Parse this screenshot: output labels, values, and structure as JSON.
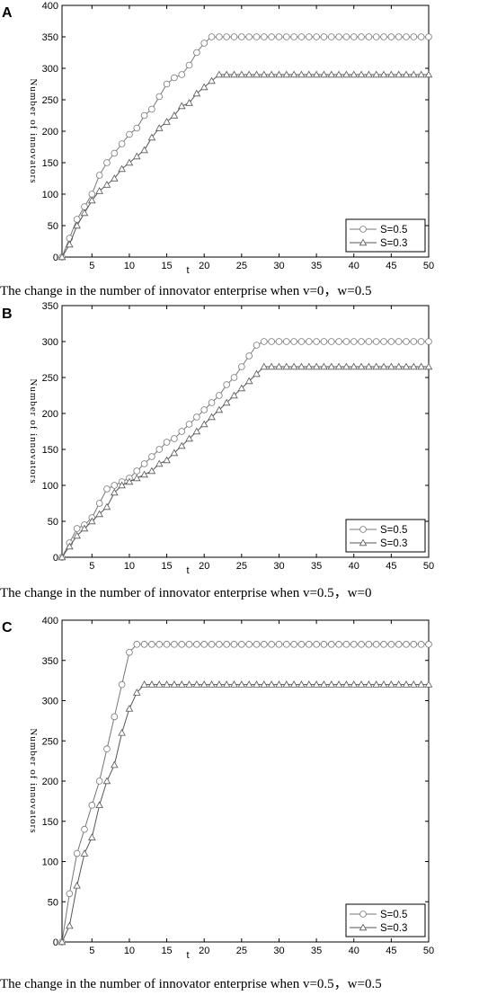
{
  "chart_data": [
    {
      "type": "line",
      "panel_label": "A",
      "caption": "The change in the number of innovator enterprise when v=0，w=0.5",
      "xlabel": "t",
      "ylabel": "Number of innovators",
      "xlim": [
        1,
        50
      ],
      "ylim": [
        0,
        400
      ],
      "x_ticks": [
        5,
        10,
        15,
        20,
        25,
        30,
        35,
        40,
        45,
        50
      ],
      "y_ticks": [
        0,
        50,
        100,
        150,
        200,
        250,
        300,
        350,
        400
      ],
      "legend": "bottom-right",
      "series": [
        {
          "name": "S=0.5",
          "marker": "circle",
          "color": "#666666",
          "values": [
            0,
            30,
            60,
            80,
            100,
            130,
            150,
            165,
            180,
            195,
            205,
            225,
            235,
            255,
            275,
            285,
            290,
            305,
            325,
            340,
            350,
            350,
            350,
            350,
            350,
            350,
            350,
            350,
            350,
            350,
            350,
            350,
            350,
            350,
            350,
            350,
            350,
            350,
            350,
            350,
            350,
            350,
            350,
            350,
            350,
            350,
            350,
            350,
            350,
            350
          ]
        },
        {
          "name": "S=0.3",
          "marker": "triangle",
          "color": "#666666",
          "values": [
            0,
            20,
            50,
            70,
            90,
            105,
            115,
            125,
            140,
            150,
            160,
            170,
            190,
            205,
            215,
            225,
            240,
            245,
            260,
            270,
            280,
            290,
            290,
            290,
            290,
            290,
            290,
            290,
            290,
            290,
            290,
            290,
            290,
            290,
            290,
            290,
            290,
            290,
            290,
            290,
            290,
            290,
            290,
            290,
            290,
            290,
            290,
            290,
            290,
            290
          ]
        }
      ]
    },
    {
      "type": "line",
      "panel_label": "B",
      "caption": "The change in the number of innovator enterprise when v=0.5，w=0",
      "xlabel": "t",
      "ylabel": "Number of innovators",
      "xlim": [
        1,
        50
      ],
      "ylim": [
        0,
        350
      ],
      "x_ticks": [
        5,
        10,
        15,
        20,
        25,
        30,
        35,
        40,
        45,
        50
      ],
      "y_ticks": [
        0,
        50,
        100,
        150,
        200,
        250,
        300,
        350
      ],
      "legend": "bottom-right",
      "series": [
        {
          "name": "S=0.5",
          "marker": "circle",
          "color": "#666666",
          "values": [
            0,
            20,
            40,
            45,
            55,
            75,
            95,
            100,
            105,
            110,
            120,
            130,
            140,
            150,
            160,
            165,
            175,
            185,
            195,
            205,
            215,
            225,
            240,
            250,
            265,
            280,
            295,
            300,
            300,
            300,
            300,
            300,
            300,
            300,
            300,
            300,
            300,
            300,
            300,
            300,
            300,
            300,
            300,
            300,
            300,
            300,
            300,
            300,
            300,
            300
          ]
        },
        {
          "name": "S=0.3",
          "marker": "triangle",
          "color": "#666666",
          "values": [
            0,
            15,
            30,
            40,
            50,
            60,
            70,
            90,
            100,
            105,
            110,
            115,
            120,
            130,
            135,
            145,
            155,
            165,
            175,
            185,
            195,
            205,
            215,
            225,
            235,
            245,
            255,
            265,
            265,
            265,
            265,
            265,
            265,
            265,
            265,
            265,
            265,
            265,
            265,
            265,
            265,
            265,
            265,
            265,
            265,
            265,
            265,
            265,
            265,
            265
          ]
        }
      ]
    },
    {
      "type": "line",
      "panel_label": "C",
      "caption": "The change in the number of innovator enterprise when v=0.5，w=0.5",
      "xlabel": "t",
      "ylabel": "Number of innovators",
      "xlim": [
        1,
        50
      ],
      "ylim": [
        0,
        400
      ],
      "x_ticks": [
        5,
        10,
        15,
        20,
        25,
        30,
        35,
        40,
        45,
        50
      ],
      "y_ticks": [
        0,
        50,
        100,
        150,
        200,
        250,
        300,
        350,
        400
      ],
      "legend": "bottom-right",
      "series": [
        {
          "name": "S=0.5",
          "marker": "circle",
          "color": "#666666",
          "values": [
            0,
            60,
            110,
            140,
            170,
            200,
            240,
            280,
            320,
            360,
            370,
            370,
            370,
            370,
            370,
            370,
            370,
            370,
            370,
            370,
            370,
            370,
            370,
            370,
            370,
            370,
            370,
            370,
            370,
            370,
            370,
            370,
            370,
            370,
            370,
            370,
            370,
            370,
            370,
            370,
            370,
            370,
            370,
            370,
            370,
            370,
            370,
            370,
            370,
            370
          ]
        },
        {
          "name": "S=0.3",
          "marker": "triangle",
          "color": "#666666",
          "values": [
            0,
            20,
            70,
            110,
            130,
            170,
            200,
            220,
            260,
            290,
            310,
            320,
            320,
            320,
            320,
            320,
            320,
            320,
            320,
            320,
            320,
            320,
            320,
            320,
            320,
            320,
            320,
            320,
            320,
            320,
            320,
            320,
            320,
            320,
            320,
            320,
            320,
            320,
            320,
            320,
            320,
            320,
            320,
            320,
            320,
            320,
            320,
            320,
            320,
            320
          ]
        }
      ]
    }
  ]
}
